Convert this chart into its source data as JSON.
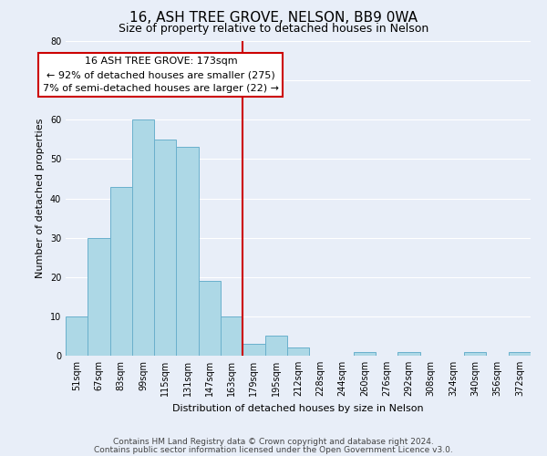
{
  "title": "16, ASH TREE GROVE, NELSON, BB9 0WA",
  "subtitle": "Size of property relative to detached houses in Nelson",
  "xlabel": "Distribution of detached houses by size in Nelson",
  "ylabel": "Number of detached properties",
  "bin_labels": [
    "51sqm",
    "67sqm",
    "83sqm",
    "99sqm",
    "115sqm",
    "131sqm",
    "147sqm",
    "163sqm",
    "179sqm",
    "195sqm",
    "212sqm",
    "228sqm",
    "244sqm",
    "260sqm",
    "276sqm",
    "292sqm",
    "308sqm",
    "324sqm",
    "340sqm",
    "356sqm",
    "372sqm"
  ],
  "bar_heights": [
    10,
    30,
    43,
    60,
    55,
    53,
    19,
    10,
    3,
    5,
    2,
    0,
    0,
    1,
    0,
    1,
    0,
    0,
    1,
    0,
    1
  ],
  "bar_color": "#add8e6",
  "bar_edge_color": "#6ab0cc",
  "vline_x": 7.5,
  "vline_color": "#cc0000",
  "annotation_text": "16 ASH TREE GROVE: 173sqm\n← 92% of detached houses are smaller (275)\n7% of semi-detached houses are larger (22) →",
  "annotation_box_color": "#ffffff",
  "annotation_box_edge": "#cc0000",
  "ylim": [
    0,
    80
  ],
  "yticks": [
    0,
    10,
    20,
    30,
    40,
    50,
    60,
    70,
    80
  ],
  "footer1": "Contains HM Land Registry data © Crown copyright and database right 2024.",
  "footer2": "Contains public sector information licensed under the Open Government Licence v3.0.",
  "background_color": "#e8eef8",
  "plot_background": "#e8eef8",
  "title_fontsize": 11,
  "subtitle_fontsize": 9,
  "axis_label_fontsize": 8,
  "tick_fontsize": 7,
  "annotation_fontsize": 8,
  "footer_fontsize": 6.5
}
